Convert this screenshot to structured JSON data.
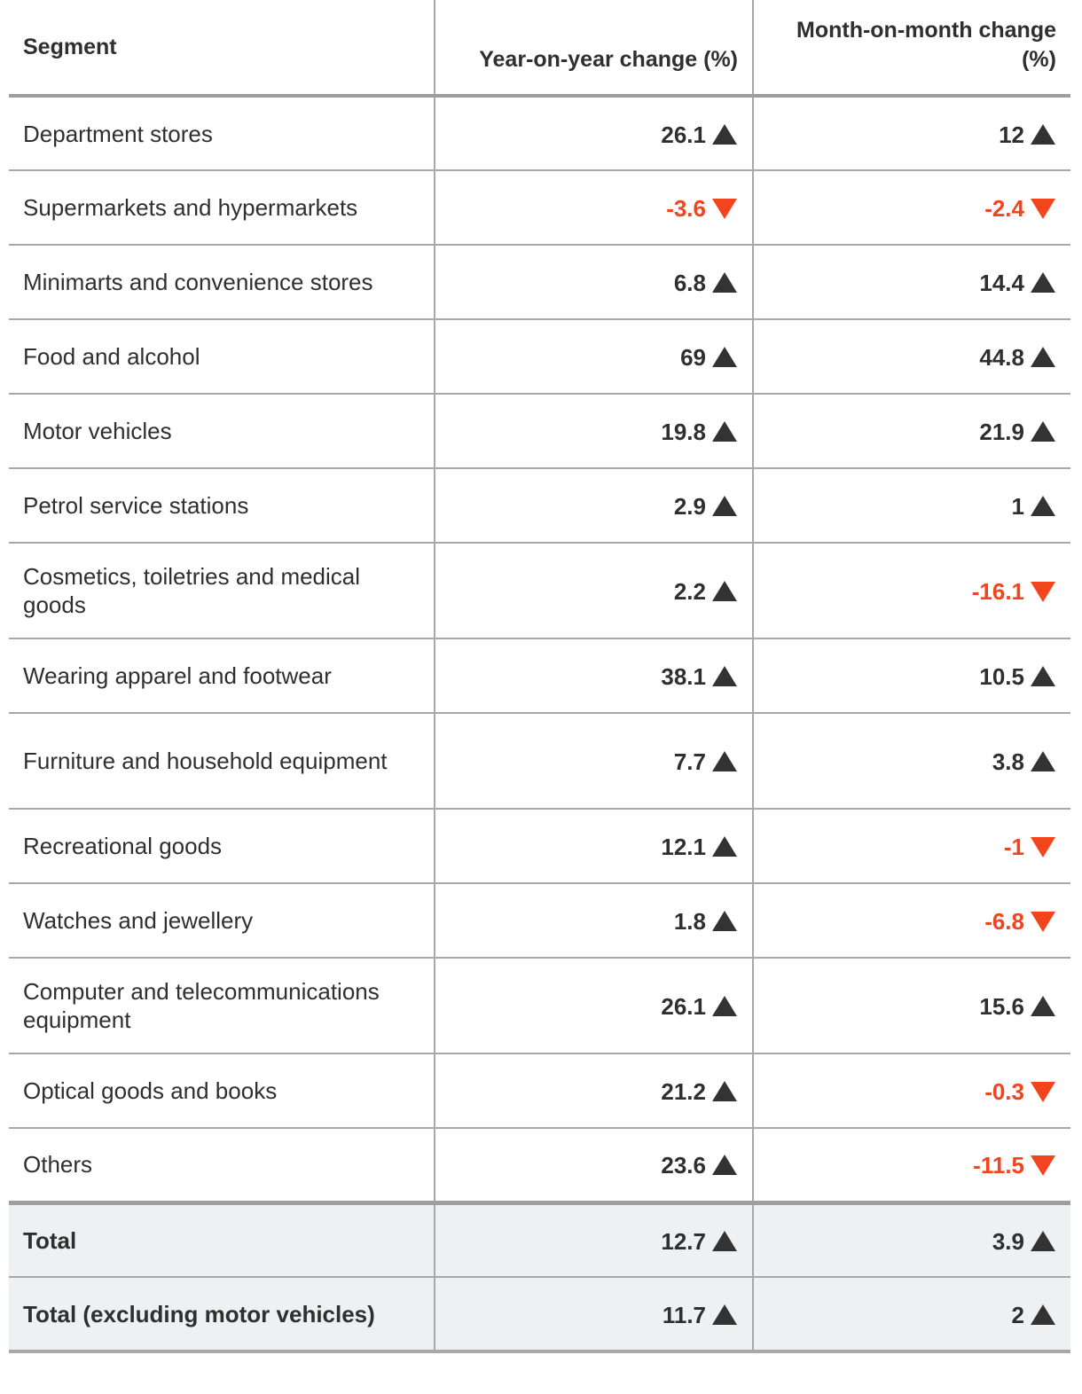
{
  "chart_data": {
    "type": "table",
    "columns": [
      "Segment",
      "Year-on-year change (%)",
      "Month-on-month change (%)"
    ],
    "rows": [
      {
        "segment": "Department stores",
        "yoy": "26.1",
        "mom": "12"
      },
      {
        "segment": "Supermarkets and hypermarkets",
        "yoy": "-3.6",
        "mom": "-2.4"
      },
      {
        "segment": "Minimarts and convenience stores",
        "yoy": "6.8",
        "mom": "14.4"
      },
      {
        "segment": "Food and alcohol",
        "yoy": "69",
        "mom": "44.8"
      },
      {
        "segment": "Motor vehicles",
        "yoy": "19.8",
        "mom": "21.9"
      },
      {
        "segment": "Petrol service stations",
        "yoy": "2.9",
        "mom": "1"
      },
      {
        "segment": "Cosmetics, toiletries and medical goods",
        "yoy": "2.2",
        "mom": "-16.1"
      },
      {
        "segment": "Wearing apparel and footwear",
        "yoy": "38.1",
        "mom": "10.5"
      },
      {
        "segment": "Furniture and household equipment",
        "yoy": "7.7",
        "mom": "3.8"
      },
      {
        "segment": "Recreational goods",
        "yoy": "12.1",
        "mom": "-1"
      },
      {
        "segment": "Watches and jewellery",
        "yoy": "1.8",
        "mom": "-6.8"
      },
      {
        "segment": "Computer and telecommunications equipment",
        "yoy": "26.1",
        "mom": "15.6"
      },
      {
        "segment": "Optical goods and books",
        "yoy": "21.2",
        "mom": "-0.3"
      },
      {
        "segment": "Others",
        "yoy": "23.6",
        "mom": "-11.5"
      }
    ],
    "totals": [
      {
        "segment": "Total",
        "yoy": "12.7",
        "mom": "3.9"
      },
      {
        "segment": "Total (excluding motor vehicles)",
        "yoy": "11.7",
        "mom": "2"
      }
    ],
    "colors": {
      "up": "#333333",
      "down": "#f2441d",
      "total_row_bg": "#eef0f1"
    },
    "icons": {
      "up": "triangle-up-icon",
      "down": "triangle-down-icon"
    }
  }
}
